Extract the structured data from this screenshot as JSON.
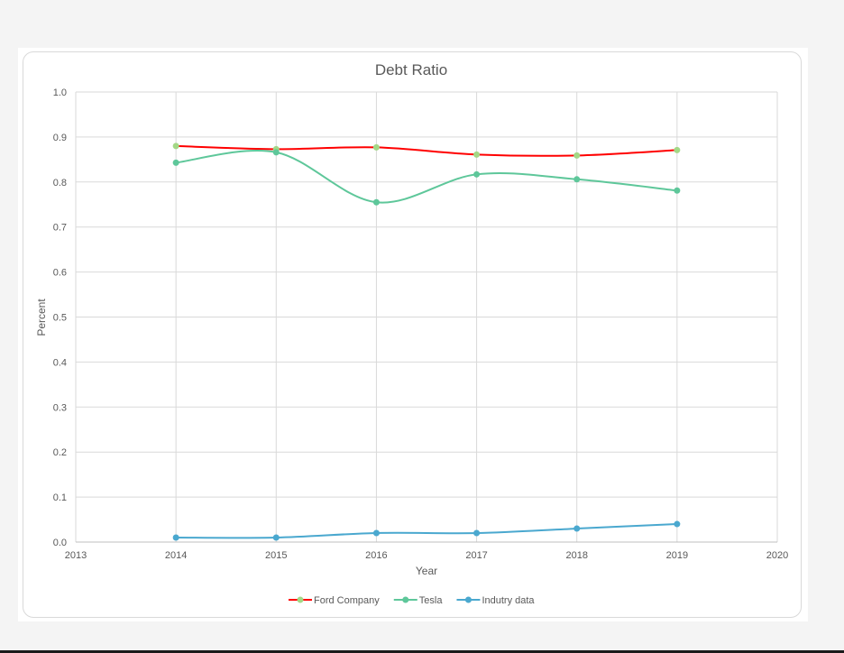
{
  "chart_data": {
    "type": "line",
    "title": "Debt Ratio",
    "xlabel": "Year",
    "ylabel": "Percent",
    "xlim": [
      2013,
      2020
    ],
    "ylim": [
      0.0,
      1.0
    ],
    "x_ticks": [
      "2013",
      "2014",
      "2015",
      "2016",
      "2017",
      "2018",
      "2019",
      "2020"
    ],
    "y_ticks": [
      "0.0",
      "0.1",
      "0.2",
      "0.3",
      "0.4",
      "0.5",
      "0.6",
      "0.7",
      "0.8",
      "0.9",
      "1.0"
    ],
    "grid": true,
    "smooth": true,
    "legend_position": "bottom",
    "x": [
      2014,
      2015,
      2016,
      2017,
      2018,
      2019
    ],
    "series": [
      {
        "name": "Ford Company",
        "line_color": "#ff0000",
        "marker_color": "#a3d886",
        "values": [
          0.88,
          0.873,
          0.877,
          0.861,
          0.859,
          0.871
        ]
      },
      {
        "name": "Tesla",
        "line_color": "#5ec79a",
        "marker_color": "#5ec79a",
        "values": [
          0.843,
          0.866,
          0.755,
          0.817,
          0.806,
          0.781
        ]
      },
      {
        "name": "Indutry data",
        "line_color": "#4aa8cf",
        "marker_color": "#4aa8cf",
        "values": [
          0.01,
          0.01,
          0.02,
          0.02,
          0.03,
          0.04
        ]
      }
    ]
  }
}
